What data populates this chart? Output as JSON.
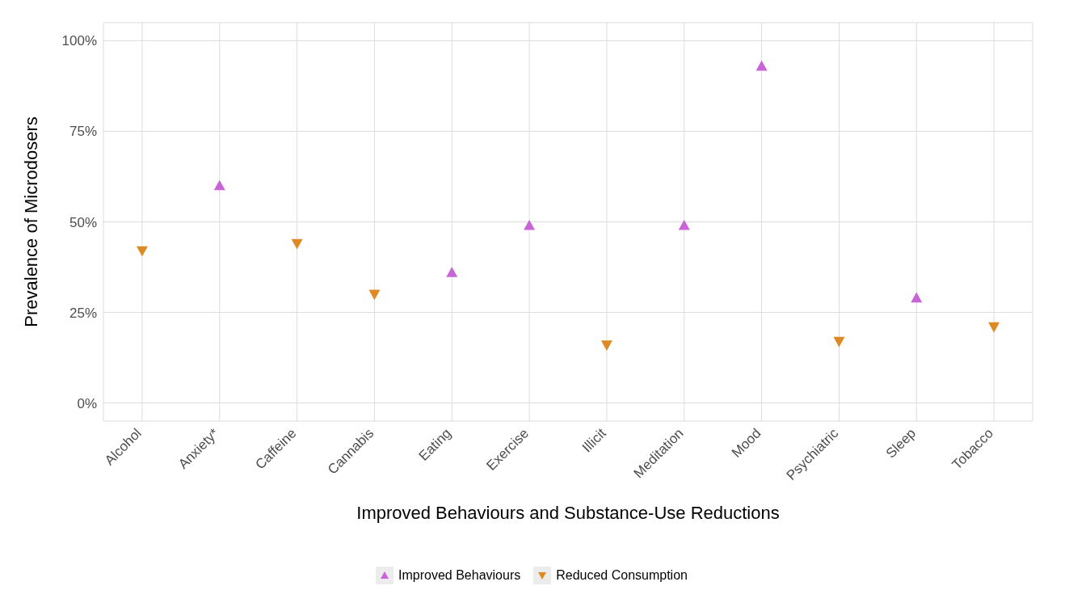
{
  "chart_data": {
    "type": "scatter",
    "xlabel": "Improved Behaviours and Substance-Use Reductions",
    "ylabel": "Prevalence of Microdosers",
    "categories": [
      "Alcohol",
      "Anxiety*",
      "Caffeine",
      "Cannabis",
      "Eating",
      "Exercise",
      "Illicit",
      "Meditation",
      "Mood",
      "Psychiatric",
      "Sleep",
      "Tobacco"
    ],
    "series": [
      {
        "name": "Improved Behaviours",
        "color": "#c964d8",
        "marker": "triangle",
        "values": [
          null,
          60,
          null,
          null,
          36,
          49,
          null,
          49,
          93,
          null,
          29,
          null
        ]
      },
      {
        "name": "Reduced Consumption",
        "color": "#de8a22",
        "marker": "triangle-down",
        "values": [
          42,
          null,
          44,
          30,
          null,
          null,
          16,
          null,
          null,
          17,
          null,
          21
        ]
      }
    ],
    "ylim": [
      -5,
      105
    ],
    "yticks": [
      {
        "value": 0,
        "label": "0%"
      },
      {
        "value": 25,
        "label": "25%"
      },
      {
        "value": 50,
        "label": "50%"
      },
      {
        "value": 75,
        "label": "75%"
      },
      {
        "value": 100,
        "label": "100%"
      }
    ],
    "grid": true,
    "legend": "bottom"
  }
}
